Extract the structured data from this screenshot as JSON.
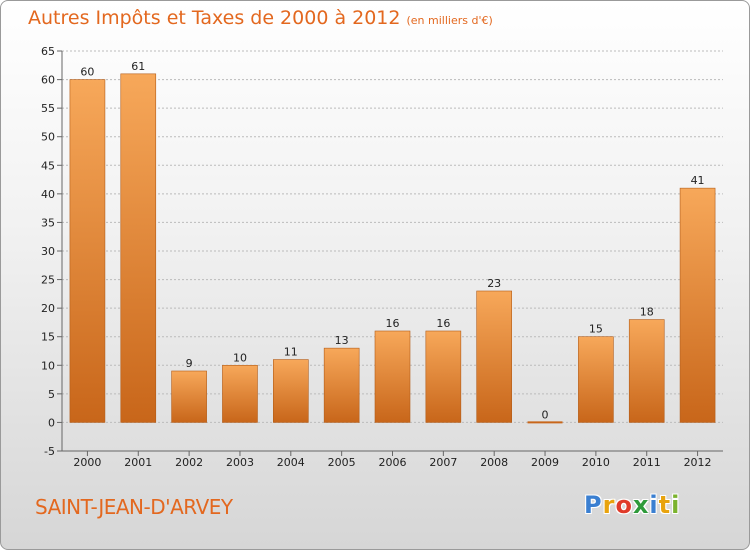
{
  "title": "Autres Impôts et Taxes de 2000 à 2012",
  "unit_label": "(en milliers d'€)",
  "commune": "SAINT-JEAN-D'ARVEY",
  "logo": {
    "text": "Proxiti",
    "letters": [
      "P",
      "r",
      "o",
      "x",
      "i",
      "t",
      "i"
    ],
    "letter_colors": [
      "#3a7fd1",
      "#e8a30d",
      "#e03b2a",
      "#2e9a3a",
      "#3a7fd1",
      "#e8a30d",
      "#7bb32e"
    ]
  },
  "colors": {
    "accent": "#e3681f",
    "bar_light": "#f7a85a",
    "bar_dark": "#c8661a",
    "axis_text": "#222222",
    "gridline": "#bbbbbb"
  },
  "chart_data": {
    "type": "bar",
    "title": "Autres Impôts et Taxes de 2000 à 2012",
    "subtitle": "(en milliers d'€)",
    "categories": [
      "2000",
      "2001",
      "2002",
      "2003",
      "2004",
      "2005",
      "2006",
      "2007",
      "2008",
      "2009",
      "2010",
      "2011",
      "2012"
    ],
    "values": [
      60,
      61,
      9,
      10,
      11,
      13,
      16,
      16,
      23,
      0,
      15,
      18,
      41
    ],
    "ylim": [
      -5,
      65
    ],
    "yticks": [
      -5,
      0,
      5,
      10,
      15,
      20,
      25,
      30,
      35,
      40,
      45,
      50,
      55,
      60,
      65
    ],
    "grid": "horizontal",
    "legend": "none"
  }
}
